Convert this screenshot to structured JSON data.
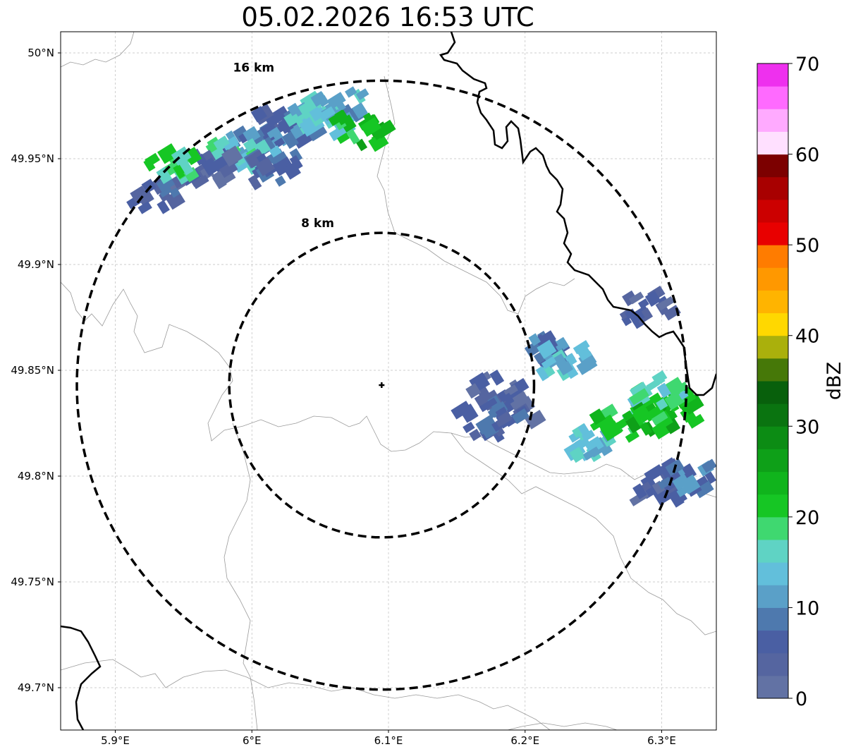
{
  "title": "05.02.2026 16:53 UTC",
  "map": {
    "lon_range": [
      5.86,
      6.34
    ],
    "lat_range": [
      49.68,
      50.01
    ],
    "lon_ticks": [
      {
        "value": 5.9,
        "label": "5.9°E"
      },
      {
        "value": 6.0,
        "label": "6°E"
      },
      {
        "value": 6.1,
        "label": "6.1°E"
      },
      {
        "value": 6.2,
        "label": "6.2°E"
      },
      {
        "value": 6.3,
        "label": "6.3°E"
      }
    ],
    "lat_ticks": [
      {
        "value": 50.0,
        "label": "50°N"
      },
      {
        "value": 49.95,
        "label": "49.95°N"
      },
      {
        "value": 49.9,
        "label": "49.9°N"
      },
      {
        "value": 49.85,
        "label": "49.85°N"
      },
      {
        "value": 49.8,
        "label": "49.8°N"
      },
      {
        "value": 49.75,
        "label": "49.75°N"
      },
      {
        "value": 49.7,
        "label": "49.7°N"
      }
    ],
    "gridlines": true,
    "radar_site": {
      "lon": 6.095,
      "lat": 49.843
    },
    "range_rings": [
      {
        "radius_km": 8,
        "label": "8 km"
      },
      {
        "radius_km": 16,
        "label": "16 km"
      }
    ],
    "colors": {
      "border": "#000000",
      "admin_lines": "#9a9a9a",
      "grid": "#bdbdbd"
    }
  },
  "colorbar": {
    "label": "dBZ",
    "ticks": [
      {
        "value": 0,
        "label": "0"
      },
      {
        "value": 10,
        "label": "10"
      },
      {
        "value": 20,
        "label": "20"
      },
      {
        "value": 30,
        "label": "30"
      },
      {
        "value": 40,
        "label": "40"
      },
      {
        "value": 50,
        "label": "50"
      },
      {
        "value": 60,
        "label": "60"
      },
      {
        "value": 70,
        "label": "70"
      }
    ],
    "colors": [
      "#6272a4",
      "#5565a0",
      "#4a5fa3",
      "#4e79ae",
      "#5aa0c8",
      "#62bfdb",
      "#5fd3c4",
      "#3fd870",
      "#16c624",
      "#10b41c",
      "#0ea018",
      "#0c8c14",
      "#0a7410",
      "#08600c",
      "#467808",
      "#aab00c",
      "#ffd800",
      "#ffb400",
      "#ff9800",
      "#ff7c00",
      "#e80000",
      "#cc0000",
      "#a80000",
      "#7c0000",
      "#ffe0ff",
      "#ffaaff",
      "#ff6aff",
      "#ee30ee"
    ]
  },
  "chart_data": {
    "type": "heatmap",
    "title": "05.02.2026 16:53 UTC",
    "xlabel": "",
    "ylabel": "",
    "x_range": [
      5.86,
      6.34
    ],
    "y_range": [
      49.68,
      50.01
    ],
    "colorbar_label": "dBZ",
    "colorbar_range": [
      0,
      70
    ],
    "echo_cells": [
      {
        "lon": 6.02,
        "lat": 49.965,
        "dbz": 6
      },
      {
        "lon": 6.03,
        "lat": 49.962,
        "dbz": 8
      },
      {
        "lon": 6.045,
        "lat": 49.972,
        "dbz": 14
      },
      {
        "lon": 6.055,
        "lat": 49.968,
        "dbz": 15
      },
      {
        "lon": 6.065,
        "lat": 49.975,
        "dbz": 12
      },
      {
        "lon": 6.0,
        "lat": 49.955,
        "dbz": 10
      },
      {
        "lon": 5.99,
        "lat": 49.952,
        "dbz": 16
      },
      {
        "lon": 6.015,
        "lat": 49.945,
        "dbz": 6
      },
      {
        "lon": 5.97,
        "lat": 49.945,
        "dbz": 4
      },
      {
        "lon": 5.93,
        "lat": 49.933,
        "dbz": 5
      },
      {
        "lon": 6.08,
        "lat": 49.963,
        "dbz": 22
      },
      {
        "lon": 5.94,
        "lat": 49.946,
        "dbz": 19
      },
      {
        "lon": 6.18,
        "lat": 49.84,
        "dbz": 4
      },
      {
        "lon": 6.17,
        "lat": 49.825,
        "dbz": 6
      },
      {
        "lon": 6.19,
        "lat": 49.83,
        "dbz": 5
      },
      {
        "lon": 6.22,
        "lat": 49.86,
        "dbz": 8
      },
      {
        "lon": 6.23,
        "lat": 49.855,
        "dbz": 13
      },
      {
        "lon": 6.25,
        "lat": 49.815,
        "dbz": 13
      },
      {
        "lon": 6.27,
        "lat": 49.825,
        "dbz": 20
      },
      {
        "lon": 6.29,
        "lat": 49.828,
        "dbz": 24
      },
      {
        "lon": 6.31,
        "lat": 49.832,
        "dbz": 22
      },
      {
        "lon": 6.3,
        "lat": 49.84,
        "dbz": 16
      },
      {
        "lon": 6.29,
        "lat": 49.88,
        "dbz": 4
      },
      {
        "lon": 6.3,
        "lat": 49.795,
        "dbz": 5
      },
      {
        "lon": 6.32,
        "lat": 49.8,
        "dbz": 8
      }
    ]
  }
}
